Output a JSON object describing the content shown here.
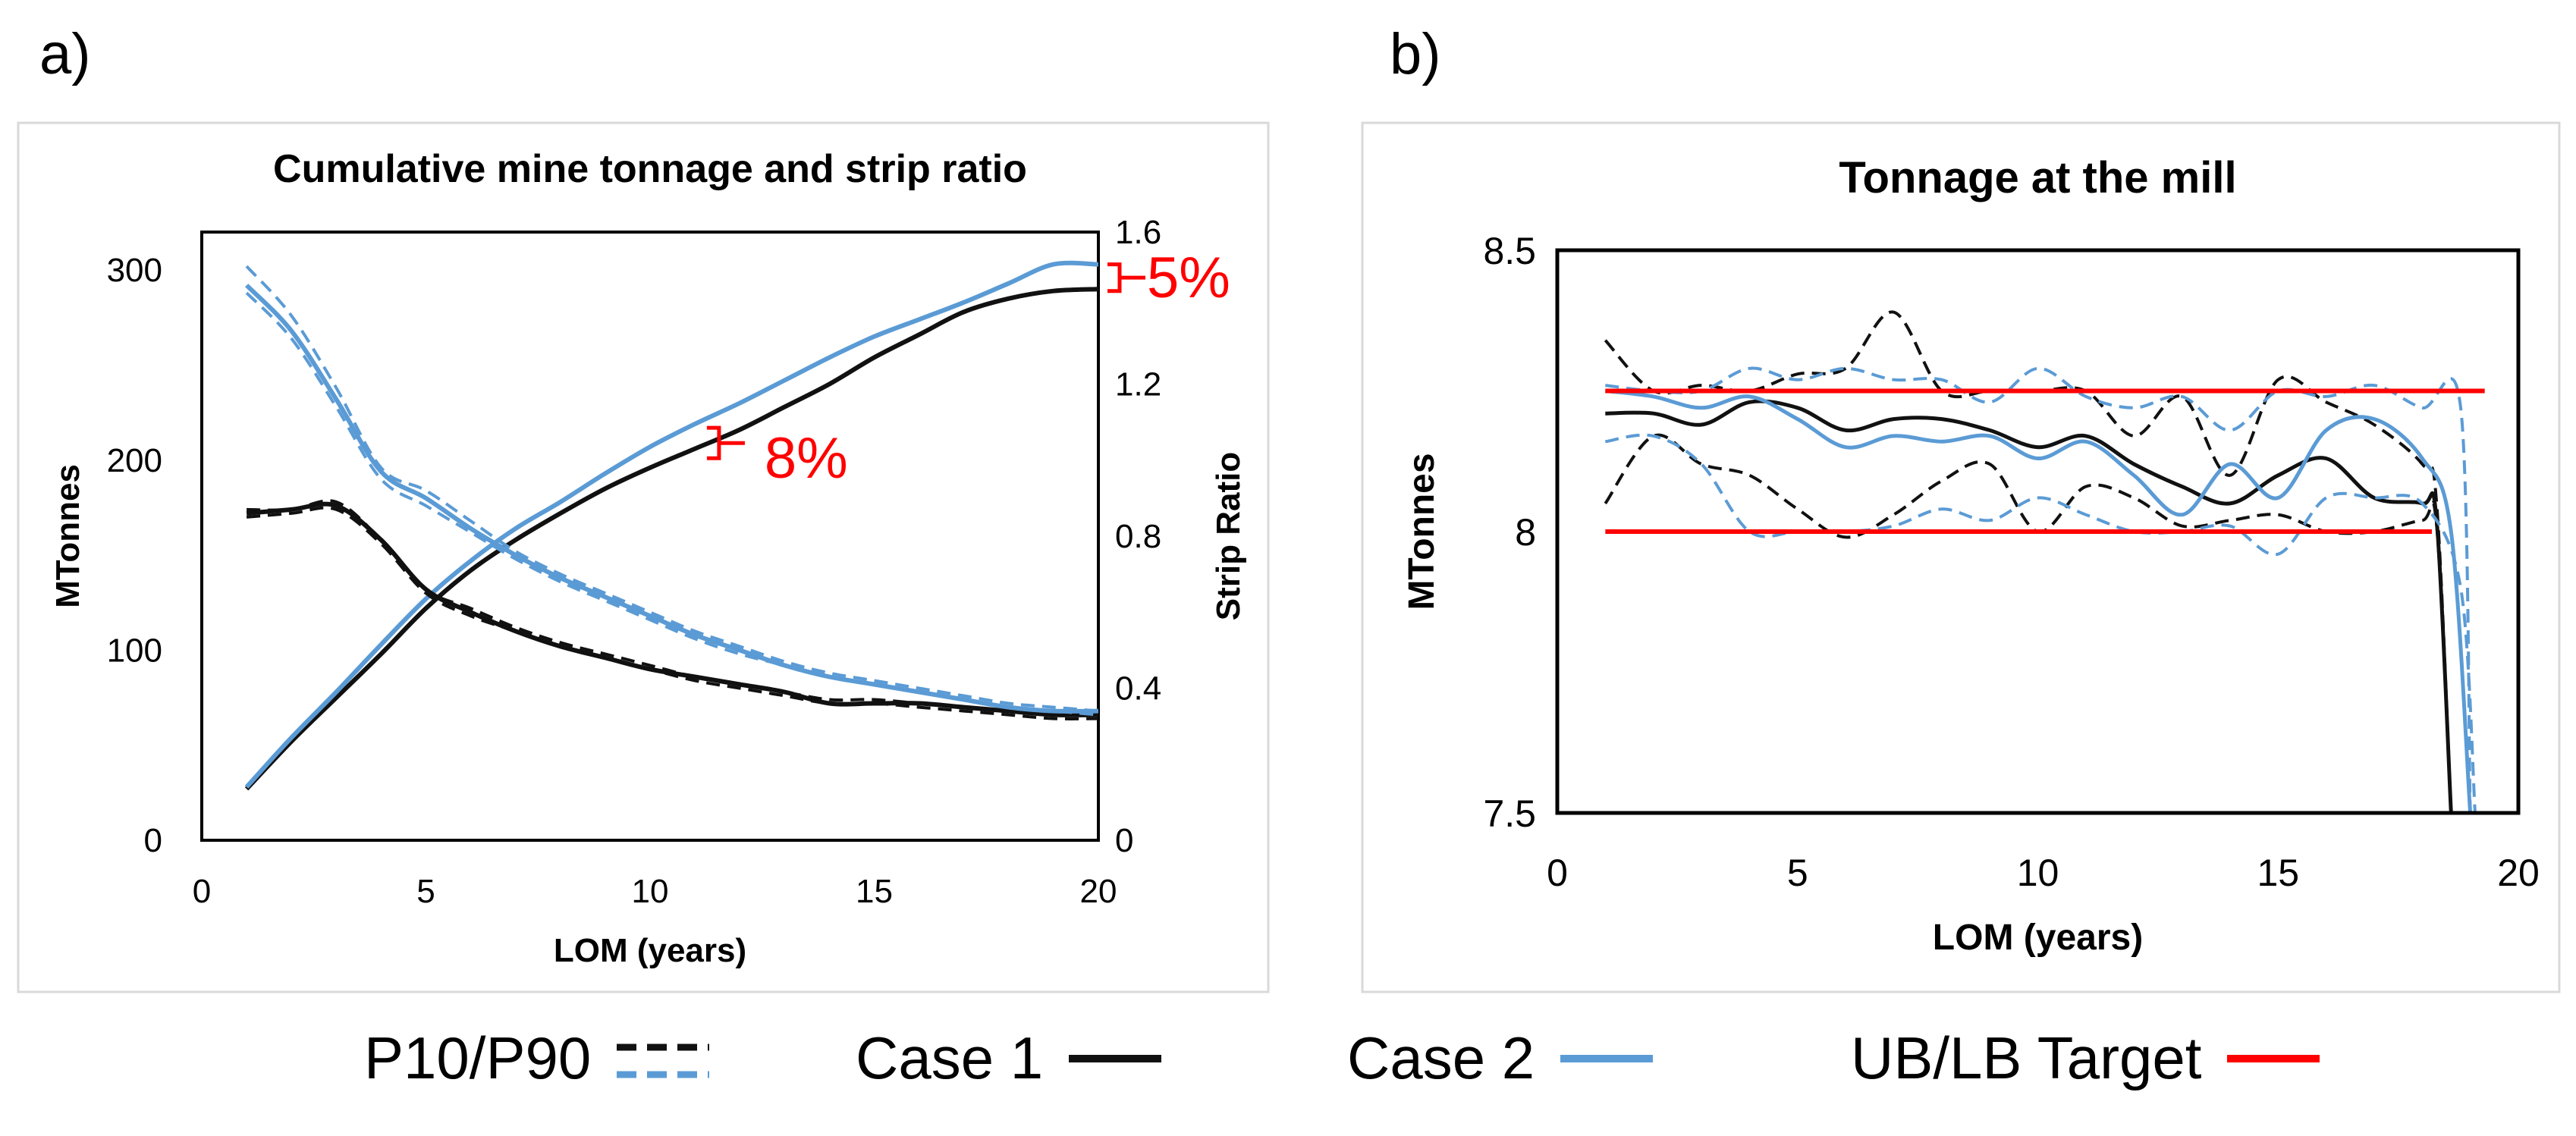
{
  "panel_a_label": "a)",
  "panel_b_label": "b)",
  "legend": {
    "p10p90": "P10/P90",
    "case1": "Case 1",
    "case2": "Case 2",
    "target": "UB/LB Target"
  },
  "colors": {
    "case1": "#111111",
    "case2": "#5b9bd5",
    "target": "#ff0000"
  },
  "chart_data": [
    {
      "type": "line",
      "title": "Cumulative mine tonnage and strip ratio",
      "xlabel": "LOM (years)",
      "ylabel": "MTonnes",
      "y2label": "Strip Ratio",
      "xlim": [
        0,
        20
      ],
      "ylim": [
        0,
        320
      ],
      "y2lim": [
        0,
        1.6
      ],
      "xticks": [
        0,
        5,
        10,
        15,
        20
      ],
      "yticks": [
        0,
        100,
        200,
        300
      ],
      "y2ticks": [
        0,
        0.4,
        0.8,
        1.2,
        1.6
      ],
      "ytick_labels": [
        "0",
        "100",
        "200",
        "300"
      ],
      "y2tick_labels": [
        "0",
        "0.4",
        "0.8",
        "1.2",
        "1.6"
      ],
      "series": [
        {
          "name": "Case 1 cumulative tonnage",
          "color": "#111111",
          "dash": false,
          "axis": "left",
          "x": [
            1,
            2,
            3,
            4,
            5,
            6,
            7,
            8,
            9,
            10,
            11,
            12,
            13,
            14,
            15,
            16,
            17,
            18,
            19,
            20
          ],
          "y": [
            27,
            52,
            75,
            98,
            122,
            142,
            158,
            172,
            185,
            196,
            206,
            216,
            228,
            240,
            254,
            266,
            278,
            285,
            289,
            290
          ]
        },
        {
          "name": "Case 2 cumulative tonnage",
          "color": "#5b9bd5",
          "dash": false,
          "axis": "left",
          "x": [
            1,
            2,
            3,
            4,
            5,
            6,
            7,
            8,
            9,
            10,
            11,
            12,
            13,
            14,
            15,
            16,
            17,
            18,
            19,
            20
          ],
          "y": [
            28,
            54,
            78,
            103,
            127,
            147,
            164,
            178,
            193,
            207,
            219,
            230,
            242,
            254,
            265,
            274,
            283,
            293,
            303,
            303
          ]
        },
        {
          "name": "Case 1 strip ratio",
          "color": "#111111",
          "dash": false,
          "axis": "right",
          "x": [
            1,
            2,
            3,
            4,
            5,
            6,
            7,
            8,
            9,
            10,
            11,
            12,
            13,
            14,
            15,
            16,
            17,
            18,
            19,
            20
          ],
          "y": [
            0.86,
            0.87,
            0.88,
            0.79,
            0.66,
            0.6,
            0.55,
            0.51,
            0.48,
            0.45,
            0.43,
            0.41,
            0.39,
            0.36,
            0.36,
            0.36,
            0.35,
            0.34,
            0.33,
            0.33
          ]
        },
        {
          "name": "Case 1 strip ratio P10",
          "color": "#111111",
          "dash": true,
          "axis": "right",
          "x": [
            1,
            2,
            3,
            4,
            5,
            6,
            7,
            8,
            9,
            10,
            11,
            12,
            13,
            14,
            15,
            16,
            17,
            18,
            19,
            20
          ],
          "y": [
            0.85,
            0.86,
            0.87,
            0.78,
            0.65,
            0.59,
            0.55,
            0.51,
            0.48,
            0.45,
            0.42,
            0.4,
            0.38,
            0.36,
            0.36,
            0.35,
            0.34,
            0.33,
            0.32,
            0.32
          ]
        },
        {
          "name": "Case 1 strip ratio P90",
          "color": "#111111",
          "dash": true,
          "axis": "right",
          "x": [
            1,
            2,
            3,
            4,
            5,
            6,
            7,
            8,
            9,
            10,
            11,
            12,
            13,
            14,
            15,
            16,
            17,
            18,
            19,
            20
          ],
          "y": [
            0.87,
            0.87,
            0.89,
            0.79,
            0.66,
            0.61,
            0.56,
            0.52,
            0.49,
            0.46,
            0.43,
            0.41,
            0.39,
            0.37,
            0.37,
            0.36,
            0.35,
            0.34,
            0.33,
            0.33
          ]
        },
        {
          "name": "Case 2 strip ratio",
          "color": "#5b9bd5",
          "dash": false,
          "axis": "right",
          "x": [
            1,
            2,
            3,
            4,
            5,
            6,
            7,
            8,
            9,
            10,
            11,
            12,
            13,
            14,
            15,
            16,
            17,
            18,
            19,
            20
          ],
          "y": [
            1.46,
            1.34,
            1.16,
            0.97,
            0.9,
            0.82,
            0.75,
            0.69,
            0.64,
            0.59,
            0.54,
            0.5,
            0.46,
            0.43,
            0.41,
            0.39,
            0.37,
            0.35,
            0.34,
            0.34
          ]
        },
        {
          "name": "Case 2 strip ratio P10",
          "color": "#5b9bd5",
          "dash": true,
          "axis": "right",
          "x": [
            1,
            2,
            3,
            4,
            5,
            6,
            7,
            8,
            9,
            10,
            11,
            12,
            13,
            14,
            15,
            16,
            17,
            18,
            19,
            20
          ],
          "y": [
            1.44,
            1.32,
            1.14,
            0.95,
            0.88,
            0.81,
            0.74,
            0.68,
            0.63,
            0.58,
            0.53,
            0.49,
            0.46,
            0.43,
            0.41,
            0.39,
            0.37,
            0.35,
            0.34,
            0.33
          ]
        },
        {
          "name": "Case 2 strip ratio P90",
          "color": "#5b9bd5",
          "dash": true,
          "axis": "right",
          "x": [
            1,
            2,
            3,
            4,
            5,
            6,
            7,
            8,
            9,
            10,
            11,
            12,
            13,
            14,
            15,
            16,
            17,
            18,
            19,
            20
          ],
          "y": [
            1.51,
            1.38,
            1.19,
            0.98,
            0.92,
            0.84,
            0.76,
            0.7,
            0.65,
            0.6,
            0.55,
            0.51,
            0.47,
            0.44,
            0.42,
            0.4,
            0.38,
            0.36,
            0.35,
            0.34
          ]
        }
      ],
      "annotations": [
        {
          "text": "5%",
          "x": 20,
          "y_from": 289,
          "y_to": 303,
          "color": "#ff0000"
        },
        {
          "text": "8%",
          "x": 11.2,
          "y_from": 201,
          "y_to": 217,
          "color": "#ff0000"
        }
      ]
    },
    {
      "type": "line",
      "title": "Tonnage at the mill",
      "xlabel": "LOM (years)",
      "ylabel": "MTonnes",
      "xlim": [
        0,
        20
      ],
      "ylim": [
        7.5,
        8.5
      ],
      "xticks": [
        0,
        5,
        10,
        15,
        20
      ],
      "yticks": [
        7.5,
        8,
        8.5
      ],
      "ytick_labels": [
        "7.5",
        "8",
        "8.5"
      ],
      "series": [
        {
          "name": "Case 1",
          "color": "#111111",
          "dash": false,
          "x": [
            1,
            2,
            3,
            4,
            5,
            6,
            7,
            8,
            9,
            10,
            11,
            12,
            13,
            14,
            15,
            16,
            17,
            18,
            18.3,
            18.6
          ],
          "y": [
            8.21,
            8.21,
            8.19,
            8.23,
            8.22,
            8.18,
            8.2,
            8.2,
            8.18,
            8.15,
            8.17,
            8.12,
            8.08,
            8.05,
            8.1,
            8.13,
            8.06,
            8.05,
            8.02,
            7.5
          ]
        },
        {
          "name": "Case 1 P10",
          "color": "#111111",
          "dash": true,
          "x": [
            1,
            2,
            3,
            4,
            5,
            6,
            7,
            8,
            9,
            10,
            11,
            12,
            13,
            14,
            15,
            16,
            17,
            18,
            18.3,
            18.6
          ],
          "y": [
            8.34,
            8.25,
            8.26,
            8.25,
            8.28,
            8.29,
            8.39,
            8.25,
            8.25,
            8.25,
            8.25,
            8.17,
            8.24,
            8.1,
            8.27,
            8.23,
            8.19,
            8.12,
            8.05,
            7.5
          ]
        },
        {
          "name": "Case 1 P90",
          "color": "#111111",
          "dash": true,
          "x": [
            1,
            2,
            3,
            4,
            5,
            6,
            7,
            8,
            9,
            10,
            11,
            12,
            13,
            14,
            15,
            16,
            17,
            18,
            18.3,
            18.6
          ],
          "y": [
            8.05,
            8.17,
            8.12,
            8.1,
            8.04,
            7.99,
            8.03,
            8.09,
            8.12,
            8.0,
            8.08,
            8.06,
            8.01,
            8.02,
            8.03,
            8.0,
            8.0,
            8.02,
            8.01,
            7.5
          ]
        },
        {
          "name": "Case 2",
          "color": "#5b9bd5",
          "dash": false,
          "x": [
            1,
            2,
            3,
            4,
            5,
            6,
            7,
            8,
            9,
            10,
            11,
            12,
            13,
            14,
            15,
            16,
            17,
            18,
            18.6,
            19.0
          ],
          "y": [
            8.25,
            8.24,
            8.22,
            8.24,
            8.2,
            8.15,
            8.17,
            8.16,
            8.17,
            8.13,
            8.16,
            8.1,
            8.03,
            8.12,
            8.06,
            8.18,
            8.2,
            8.13,
            8.0,
            7.5
          ]
        },
        {
          "name": "Case 2 P10",
          "color": "#5b9bd5",
          "dash": true,
          "x": [
            1,
            2,
            3,
            4,
            5,
            6,
            7,
            8,
            9,
            10,
            11,
            12,
            13,
            14,
            15,
            16,
            17,
            18,
            18.8,
            19.0
          ],
          "y": [
            8.26,
            8.25,
            8.25,
            8.29,
            8.27,
            8.29,
            8.27,
            8.27,
            8.23,
            8.29,
            8.24,
            8.22,
            8.24,
            8.18,
            8.25,
            8.24,
            8.26,
            8.22,
            8.22,
            7.5
          ]
        },
        {
          "name": "Case 2 P90",
          "color": "#5b9bd5",
          "dash": true,
          "x": [
            1,
            2,
            3,
            4,
            5,
            6,
            7,
            8,
            9,
            10,
            11,
            12,
            13,
            14,
            15,
            16,
            17,
            18,
            18.8,
            19.1
          ],
          "y": [
            8.16,
            8.17,
            8.12,
            8.0,
            8.0,
            8.0,
            8.01,
            8.04,
            8.02,
            8.06,
            8.03,
            8.0,
            8.0,
            8.01,
            7.96,
            8.06,
            8.06,
            8.05,
            7.9,
            7.5
          ]
        },
        {
          "name": "UB Target",
          "color": "#ff0000",
          "dash": false,
          "x": [
            1,
            19.3
          ],
          "y": [
            8.25,
            8.25
          ]
        },
        {
          "name": "LB Target",
          "color": "#ff0000",
          "dash": false,
          "x": [
            1,
            18.2
          ],
          "y": [
            8.0,
            8.0
          ]
        }
      ]
    }
  ]
}
